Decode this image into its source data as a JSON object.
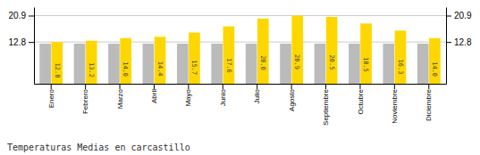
{
  "chart_data": {
    "type": "bar",
    "title": "Temperaturas Medias en carcastillo",
    "categories": [
      "Enero",
      "Febrero",
      "Marzo",
      "Abril",
      "Mayo",
      "Junio",
      "Julio",
      "Agosto",
      "Septiembre",
      "Octubre",
      "Noviembre",
      "Diciembre"
    ],
    "series": [
      {
        "color": "#BBBBBB",
        "values": [
          12.3,
          12.3,
          12.3,
          12.3,
          12.3,
          12.3,
          12.3,
          12.3,
          12.3,
          12.3,
          12.3,
          12.3
        ]
      },
      {
        "color": "#FFD700",
        "data_labels": true,
        "values": [
          12.8,
          13.2,
          14.0,
          14.4,
          15.7,
          17.6,
          20.0,
          20.9,
          20.5,
          18.5,
          16.3,
          14.0
        ],
        "value_labels": [
          "12.8",
          "13.2",
          "14.0",
          "14.4",
          "15.7",
          "17.6",
          "20.0",
          "20.9",
          "20.5",
          "18.5",
          "16.3",
          "14.0"
        ]
      }
    ],
    "ylim": [
      0.0,
      23.5
    ],
    "yticks": [
      12.8,
      20.9
    ],
    "y2lim": [
      0.0,
      23.5
    ],
    "y2ticks": [
      12.8,
      20.9
    ],
    "grid": true
  }
}
